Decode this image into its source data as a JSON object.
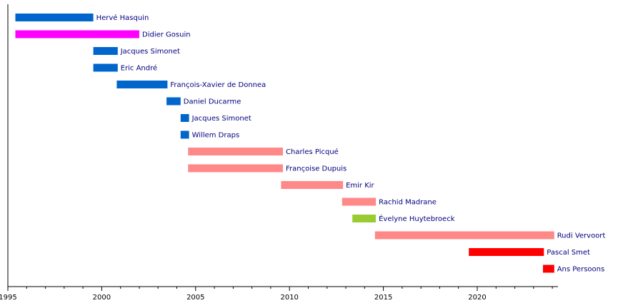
{
  "chart_data": {
    "type": "bar",
    "orientation": "horizontal",
    "subtype": "timeline",
    "title": "",
    "xlabel": "",
    "ylabel": "",
    "xlim": [
      1995,
      2024.3
    ],
    "x_ticks": [
      1995,
      2000,
      2005,
      2010,
      2015,
      2020
    ],
    "x_tick_labels": [
      "1995",
      "2000",
      "2005",
      "2010",
      "2015",
      "2020"
    ],
    "minor_tick_step": 1,
    "grid": false,
    "legend": "none",
    "colors": {
      "blue": "#0066cc",
      "magenta": "#ff00ff",
      "salmon": "#ff8888",
      "green": "#99cc33",
      "red": "#ff0000",
      "label": "#00007f"
    },
    "bars": [
      {
        "name": "Hervé Hasquin",
        "start": 1995.4,
        "end": 1999.55,
        "color": "#0066cc"
      },
      {
        "name": "Didier Gosuin",
        "start": 1995.4,
        "end": 2002.0,
        "color": "#ff00ff"
      },
      {
        "name": "Jacques Simonet",
        "start": 1999.55,
        "end": 2000.85,
        "color": "#0066cc"
      },
      {
        "name": "Eric André",
        "start": 1999.55,
        "end": 2000.85,
        "color": "#0066cc"
      },
      {
        "name": "François-Xavier de Donnea",
        "start": 2000.8,
        "end": 2003.5,
        "color": "#0066cc"
      },
      {
        "name": "Daniel Ducarme",
        "start": 2003.45,
        "end": 2004.2,
        "color": "#0066cc"
      },
      {
        "name": "Jacques Simonet",
        "start": 2004.2,
        "end": 2004.65,
        "color": "#0066cc"
      },
      {
        "name": "Willem Draps",
        "start": 2004.2,
        "end": 2004.65,
        "color": "#0066cc"
      },
      {
        "name": "Charles Picqué",
        "start": 2004.6,
        "end": 2009.65,
        "color": "#ff8888"
      },
      {
        "name": "Françoise Dupuis",
        "start": 2004.6,
        "end": 2009.65,
        "color": "#ff8888"
      },
      {
        "name": "Emir Kir",
        "start": 2009.55,
        "end": 2012.85,
        "color": "#ff8888"
      },
      {
        "name": "Rachid Madrane",
        "start": 2012.8,
        "end": 2014.6,
        "color": "#ff8888"
      },
      {
        "name": "Évelyne Huytebroeck",
        "start": 2013.35,
        "end": 2014.6,
        "color": "#99cc33"
      },
      {
        "name": "Rudi Vervoort",
        "start": 2014.55,
        "end": 2024.1,
        "color": "#ff8888"
      },
      {
        "name": "Pascal Smet",
        "start": 2019.55,
        "end": 2023.55,
        "color": "#ff0000"
      },
      {
        "name": "Ans Persoons",
        "start": 2023.5,
        "end": 2024.1,
        "color": "#ff0000"
      }
    ]
  }
}
